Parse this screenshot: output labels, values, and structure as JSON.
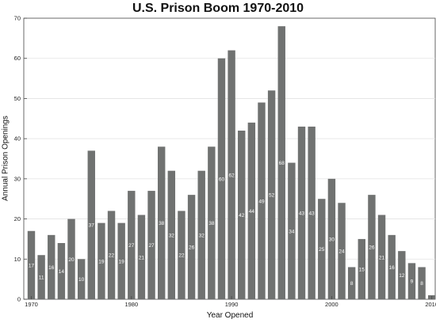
{
  "chart_data": {
    "type": "bar",
    "title": "U.S. Prison Boom 1970-2010",
    "xlabel": "Year Opened",
    "ylabel": "Annual Prison Openings",
    "x": [
      1970,
      1971,
      1972,
      1973,
      1974,
      1975,
      1976,
      1977,
      1978,
      1979,
      1980,
      1981,
      1982,
      1983,
      1984,
      1985,
      1986,
      1987,
      1988,
      1989,
      1990,
      1991,
      1992,
      1993,
      1994,
      1995,
      1996,
      1997,
      1998,
      1999,
      2000,
      2001,
      2002,
      2003,
      2004,
      2005,
      2006,
      2007,
      2008,
      2009,
      2010
    ],
    "values": [
      17,
      11,
      16,
      14,
      20,
      10,
      37,
      19,
      22,
      19,
      27,
      21,
      27,
      38,
      32,
      22,
      26,
      32,
      38,
      60,
      62,
      42,
      44,
      49,
      52,
      68,
      34,
      43,
      43,
      25,
      30,
      24,
      8,
      15,
      26,
      21,
      16,
      12,
      9,
      8,
      1
    ],
    "data_labels": [
      "17",
      "11",
      "16",
      "14",
      "20",
      "10",
      "37",
      "19",
      "22",
      "19",
      "27",
      "21",
      "27",
      "38",
      "32",
      "22",
      "26",
      "32",
      "38",
      "60",
      "62",
      "42",
      "44",
      "49",
      "52",
      "68",
      "34",
      "43",
      "43",
      "25",
      "30",
      "24",
      "8",
      "15",
      "26",
      "21",
      "16",
      "12",
      "9",
      "8",
      ""
    ],
    "xticks": [
      1970,
      1980,
      1990,
      2000,
      2010
    ],
    "yticks": [
      0,
      10,
      20,
      30,
      40,
      50,
      60,
      70
    ],
    "ylim": [
      0,
      70
    ],
    "grid": true,
    "bar_color": "#707271",
    "grid_color": "#e2e2e2"
  }
}
